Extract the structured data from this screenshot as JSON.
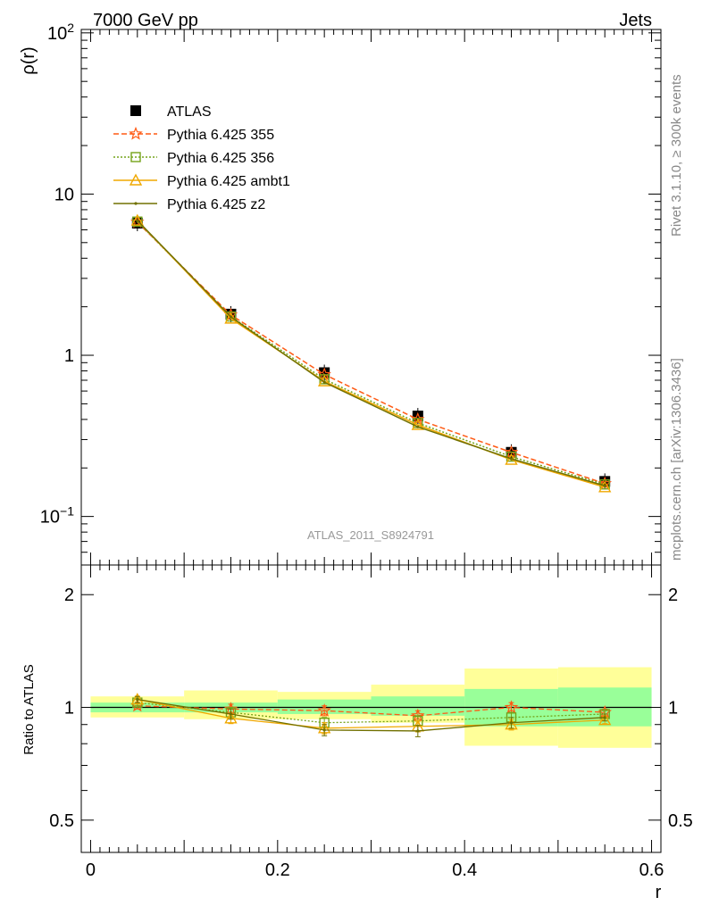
{
  "header": {
    "left": "7000 GeV pp",
    "right": "Jets"
  },
  "side_text": {
    "rivet": "Rivet 3.1.10, ≥ 300k events",
    "mcplots": "mcplots.cern.ch [arXiv:1306.3436]"
  },
  "analysis_id": "ATLAS_2011_S8924791",
  "colors": {
    "atlas": "#000000",
    "p355": "#ff5a14",
    "p356": "#74a31a",
    "ambt1": "#f0a800",
    "z2": "#707000",
    "band_yellow": "#ffff99",
    "band_green": "#99ff99"
  },
  "chart_data": [
    {
      "type": "scatter",
      "name": "main",
      "ylabel": "ρ(r)",
      "yscale": "log",
      "xlim": [
        -0.01,
        0.61
      ],
      "ylim": [
        0.05,
        105
      ],
      "x": [
        0.05,
        0.15,
        0.25,
        0.35,
        0.45,
        0.55
      ],
      "xlow": [
        0.0,
        0.1,
        0.2,
        0.3,
        0.4,
        0.5
      ],
      "xhigh": [
        0.1,
        0.2,
        0.3,
        0.4,
        0.5,
        0.6
      ],
      "legend": {
        "position": "top-left",
        "entries": [
          "ATLAS",
          "Pythia 6.425 355",
          "Pythia 6.425 356",
          "Pythia 6.425 ambt1",
          "Pythia 6.425 z2"
        ]
      },
      "series": [
        {
          "name": "ATLAS",
          "values": [
            6.6,
            1.8,
            0.78,
            0.42,
            0.25,
            0.165
          ],
          "marker": "square",
          "line": "none"
        },
        {
          "name": "Pythia 6.425 355",
          "values": [
            6.7,
            1.78,
            0.76,
            0.4,
            0.25,
            0.16
          ],
          "marker": "star",
          "line": "dashed"
        },
        {
          "name": "Pythia 6.425 356",
          "values": [
            6.75,
            1.74,
            0.71,
            0.38,
            0.235,
            0.158
          ],
          "marker": "open-square",
          "line": "dotted"
        },
        {
          "name": "Pythia 6.425 ambt1",
          "values": [
            6.85,
            1.69,
            0.69,
            0.37,
            0.225,
            0.152
          ],
          "marker": "open-triangle",
          "line": "solid"
        },
        {
          "name": "Pythia 6.425 z2",
          "values": [
            6.85,
            1.73,
            0.68,
            0.36,
            0.228,
            0.155
          ],
          "marker": "dot",
          "line": "solid"
        }
      ],
      "yticks": [
        {
          "value": 0.1,
          "label": "10",
          "exp": "−1"
        },
        {
          "value": 1,
          "label": "1",
          "exp": ""
        },
        {
          "value": 10,
          "label": "10",
          "exp": ""
        },
        {
          "value": 100,
          "label": "10",
          "exp": "2"
        }
      ]
    },
    {
      "type": "scatter",
      "name": "ratio",
      "ylabel": "Ratio to ATLAS",
      "xlabel": "r",
      "yscale": "log",
      "xlim": [
        -0.01,
        0.61
      ],
      "ylim": [
        0.41,
        2.4
      ],
      "x": [
        0.05,
        0.15,
        0.25,
        0.35,
        0.45,
        0.55
      ],
      "band_yellow": [
        [
          0.94,
          1.07
        ],
        [
          0.93,
          1.11
        ],
        [
          0.93,
          1.1
        ],
        [
          0.91,
          1.15
        ],
        [
          0.79,
          1.27
        ],
        [
          0.78,
          1.28
        ]
      ],
      "band_green": [
        [
          0.97,
          1.03
        ],
        [
          0.97,
          1.03
        ],
        [
          0.96,
          1.05
        ],
        [
          0.95,
          1.07
        ],
        [
          0.89,
          1.12
        ],
        [
          0.89,
          1.13
        ]
      ],
      "series": [
        {
          "name": "Pythia 6.425 355",
          "values": [
            1.01,
            0.99,
            0.98,
            0.95,
            1.0,
            0.97
          ],
          "err": [
            0.02,
            0.03,
            0.03,
            0.03,
            0.03,
            0.02
          ]
        },
        {
          "name": "Pythia 6.425 356",
          "values": [
            1.03,
            0.97,
            0.91,
            0.92,
            0.94,
            0.96
          ],
          "err": [
            0.02,
            0.03,
            0.03,
            0.03,
            0.03,
            0.02
          ]
        },
        {
          "name": "Pythia 6.425 ambt1",
          "values": [
            1.05,
            0.935,
            0.88,
            0.89,
            0.9,
            0.925
          ],
          "err": [
            0.02,
            0.03,
            0.03,
            0.03,
            0.03,
            0.02
          ]
        },
        {
          "name": "Pythia 6.425 z2",
          "values": [
            1.05,
            0.96,
            0.87,
            0.865,
            0.91,
            0.94
          ],
          "err": [
            0.02,
            0.03,
            0.03,
            0.03,
            0.03,
            0.02
          ]
        }
      ],
      "yticks": [
        {
          "value": 0.5,
          "label": "0.5"
        },
        {
          "value": 1,
          "label": "1"
        },
        {
          "value": 2,
          "label": "2"
        }
      ],
      "xticks": [
        {
          "value": 0,
          "label": "0"
        },
        {
          "value": 0.2,
          "label": "0.2"
        },
        {
          "value": 0.4,
          "label": "0.4"
        },
        {
          "value": 0.6,
          "label": "0.6"
        }
      ]
    }
  ]
}
